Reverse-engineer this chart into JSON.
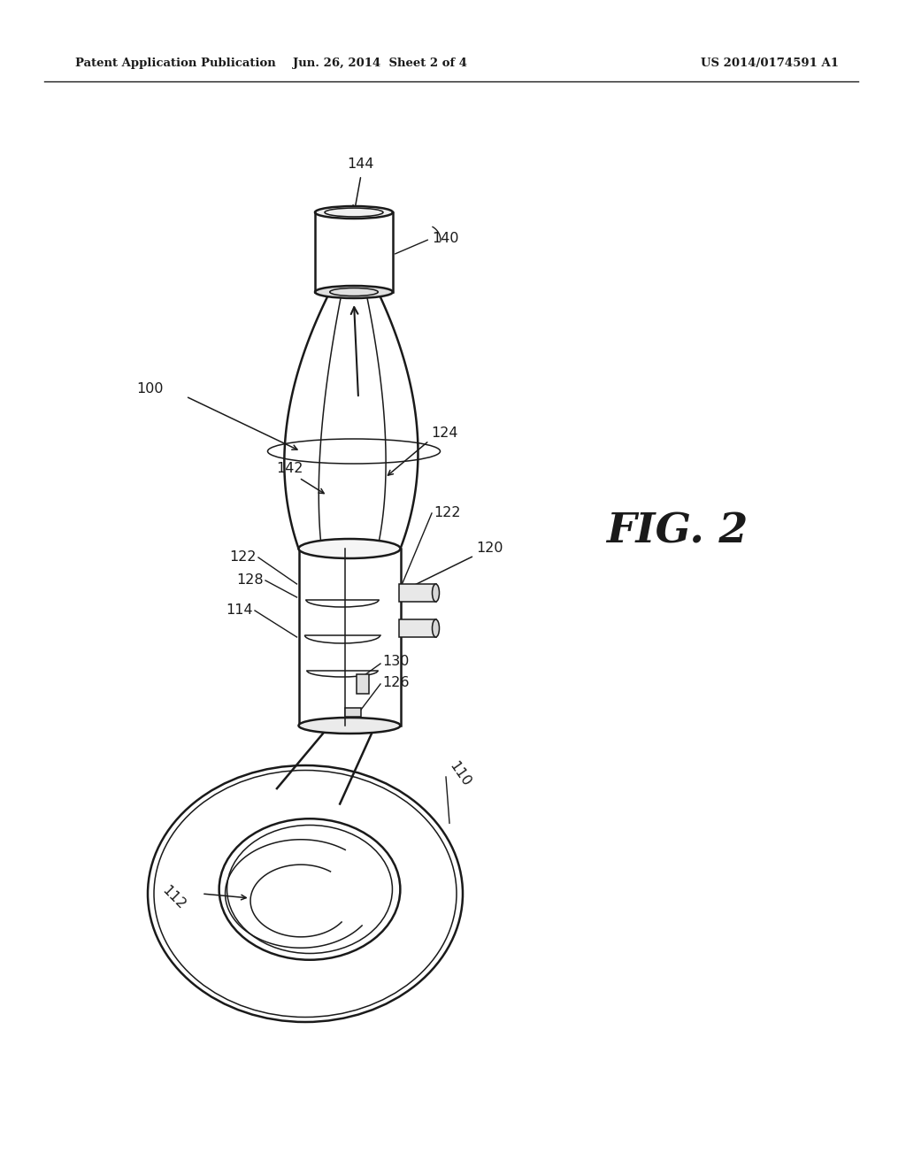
{
  "bg_color": "#ffffff",
  "line_color": "#1a1a1a",
  "header_left": "Patent Application Publication",
  "header_mid": "Jun. 26, 2014  Sheet 2 of 4",
  "header_right": "US 2014/0174591 A1",
  "fig_label": "FIG. 2",
  "lw_main": 1.8,
  "lw_thin": 1.1,
  "lw_label": 1.0
}
